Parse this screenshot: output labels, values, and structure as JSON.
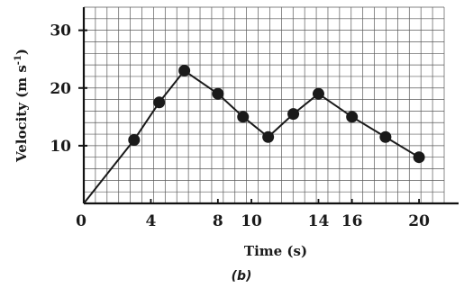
{
  "chart_data": {
    "type": "line",
    "xlabel": "Time (s)",
    "ylabel": "Velocity (m s",
    "ylabel_superscript": "-1",
    "ylabel_close": ")",
    "caption": "(b)",
    "xlim": [
      0,
      21.5
    ],
    "ylim": [
      0,
      34
    ],
    "x_ticks": [
      0,
      4,
      8,
      10,
      14,
      16,
      20
    ],
    "x_tick_labels": [
      "0",
      "4",
      "8",
      "10",
      "14",
      "16",
      "20"
    ],
    "y_ticks": [
      10,
      20,
      30
    ],
    "y_tick_labels": [
      "10",
      "20",
      "30"
    ],
    "grid": true,
    "legend": "none",
    "series": [
      {
        "x": [
          0,
          3,
          4.5,
          6,
          8,
          9.5,
          11,
          12.5,
          14,
          16,
          18,
          20
        ],
        "y": [
          0,
          11,
          17.5,
          23,
          19,
          15,
          11.5,
          15.5,
          19,
          15,
          11.5,
          8
        ],
        "markers": [
          false,
          true,
          true,
          true,
          true,
          true,
          true,
          true,
          true,
          true,
          true,
          true
        ],
        "color": "#1a1a1a"
      }
    ]
  }
}
